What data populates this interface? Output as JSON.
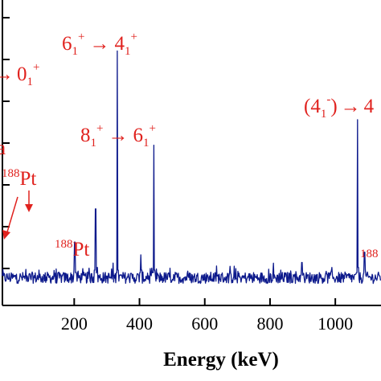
{
  "chart_data": {
    "type": "line",
    "xlabel": "Energy (keV)",
    "ylabel": "",
    "title": "",
    "xlim": [
      -20,
      1140
    ],
    "ylim": [
      0,
      1
    ],
    "x_ticks": [
      200,
      400,
      600,
      800,
      1000
    ],
    "x_tick_labels": [
      "200",
      "400",
      "600",
      "800",
      "1000"
    ],
    "grid": false,
    "legend": "none",
    "line_color": "#0d1a8c",
    "annotation_color": "#e0221e",
    "series": [
      {
        "values": [
          [
            200,
            0.06
          ],
          [
            201,
            0.17
          ],
          [
            203,
            0.05
          ],
          [
            262,
            0.06
          ],
          [
            266,
            0.3
          ],
          [
            270,
            0.07
          ],
          [
            330,
            0.05
          ],
          [
            332,
            0.92
          ],
          [
            335,
            0.06
          ],
          [
            402,
            0.05
          ],
          [
            404,
            0.12
          ],
          [
            406,
            0.06
          ],
          [
            442,
            0.05
          ],
          [
            444,
            0.55
          ],
          [
            447,
            0.06
          ],
          [
            895,
            0.04
          ],
          [
            897,
            0.09
          ],
          [
            899,
            0.04
          ],
          [
            1066,
            0.05
          ],
          [
            1068,
            0.65
          ],
          [
            1071,
            0.07
          ],
          [
            1088,
            0.05
          ],
          [
            1090,
            0.13
          ],
          [
            1092,
            0.06
          ]
        ]
      }
    ],
    "annotations": [
      {
        "kind": "transition",
        "value": "6",
        "sub": "1",
        "sup": "+",
        "arrow": "→",
        "value2": "4",
        "sub2": "1",
        "sup2": "+"
      },
      {
        "kind": "transition_partial",
        "arrow": "→",
        "value2": "0",
        "sub2": "1",
        "sup2": "+"
      },
      {
        "kind": "transition",
        "value": "8",
        "sub": "1",
        "sup": "+",
        "arrow": "→",
        "value2": "6",
        "sub2": "1",
        "sup2": "+"
      },
      {
        "kind": "transition_partial_right",
        "open": "(",
        "value": "4",
        "sub": "1",
        "sup": "-",
        "close": ")",
        "arrow": "→",
        "value2": "4"
      },
      {
        "kind": "isotope",
        "mass": "188",
        "element": "Pt",
        "id": "pt-left"
      },
      {
        "kind": "isotope",
        "mass": "188",
        "element": "Pt",
        "id": "pt-middle"
      },
      {
        "kind": "isotope_partial",
        "mass": "188",
        "id": "pt-right"
      },
      {
        "kind": "fragment",
        "text": "a"
      }
    ]
  }
}
